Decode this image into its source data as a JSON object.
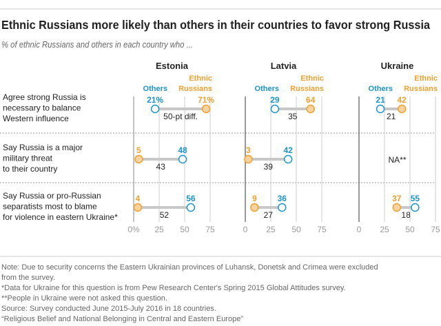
{
  "title": "Ethnic Russians more likely than others in their countries to favor strong Russia",
  "subtitle": "% of ethnic Russians and others in each country who ...",
  "colors": {
    "others": "#1b93cf",
    "ethnic_russians": "#efa02f",
    "ethnic_fill": "#f8d3a0",
    "bar": "#c8c8c8"
  },
  "chart_data": {
    "type": "dot-plot",
    "panels": [
      "Estonia",
      "Latvia",
      "Ukraine"
    ],
    "legend": {
      "others": "Others",
      "ethnic_russians_line1": "Ethnic",
      "ethnic_russians_line2": "Russians"
    },
    "xlim": [
      0,
      75
    ],
    "ticks": [
      [
        "0%",
        "25",
        "50",
        "75"
      ],
      [
        "0",
        "25",
        "50",
        "75"
      ],
      [
        "0",
        "25",
        "50",
        "75"
      ]
    ],
    "rows": [
      {
        "label": [
          "Agree strong Russia is",
          "necessary to balance",
          "Western influence"
        ],
        "values": [
          {
            "others": 21,
            "ethnic": 71,
            "others_label": "21%",
            "ethnic_label": "71%",
            "diff_label": "50-pt diff."
          },
          {
            "others": 29,
            "ethnic": 64,
            "others_label": "29",
            "ethnic_label": "64",
            "diff_label": "35"
          },
          {
            "others": 21,
            "ethnic": 42,
            "others_label": "21",
            "ethnic_label": "42",
            "diff_label": "21"
          }
        ]
      },
      {
        "label": [
          "Say Russia is a major",
          "military threat",
          "to their country"
        ],
        "values": [
          {
            "others": 48,
            "ethnic": 5,
            "others_label": "48",
            "ethnic_label": "5",
            "diff_label": "43"
          },
          {
            "others": 42,
            "ethnic": 3,
            "others_label": "42",
            "ethnic_label": "3",
            "diff_label": "39"
          },
          {
            "na": "NA**"
          }
        ]
      },
      {
        "label": [
          "Say Russia or pro-Russian",
          "separatists most to blame",
          "for violence in eastern Ukraine*"
        ],
        "values": [
          {
            "others": 56,
            "ethnic": 4,
            "others_label": "56",
            "ethnic_label": "4",
            "diff_label": "52"
          },
          {
            "others": 36,
            "ethnic": 9,
            "others_label": "36",
            "ethnic_label": "9",
            "diff_label": "27"
          },
          {
            "others": 55,
            "ethnic": 37,
            "others_label": "55",
            "ethnic_label": "37",
            "diff_label": "18"
          }
        ]
      }
    ]
  },
  "notes": [
    "Note: Due to security concerns the Eastern Ukrainian provinces of Luhansk, Donetsk and Crimea were excluded",
    "from the survey.",
    "*Data for Ukraine for this question is from Pew Research Center's Spring 2015 Global Attitudes survey.",
    "**People in Ukraine were not asked this question.",
    "Source: Survey conducted June 2015-July 2016 in 18 countries.",
    "“Religious Belief and National Belonging in Central and Eastern Europe”"
  ]
}
